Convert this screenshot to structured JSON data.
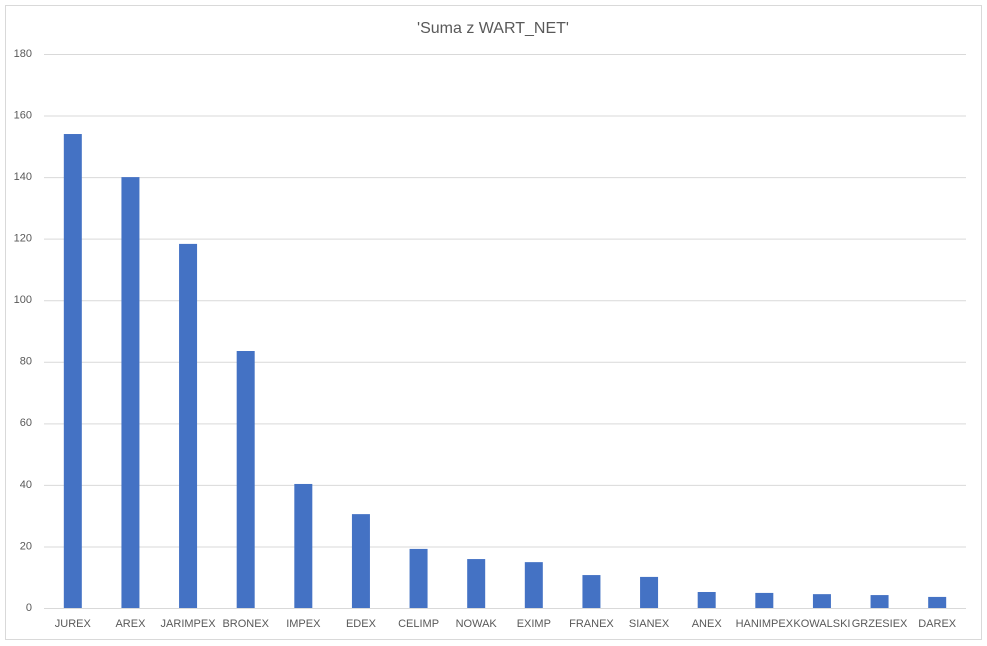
{
  "chart_data": {
    "type": "bar",
    "title": "'Suma z WART_NET'",
    "categories": [
      "JUREX",
      "AREX",
      "JARIMPEX",
      "BRONEX",
      "IMPEX",
      "EDEX",
      "CELIMP",
      "NOWAK",
      "EXIMP",
      "FRANEX",
      "SIANEX",
      "ANEX",
      "HANIMPEX",
      "KOWALSKI",
      "GRZESIEX",
      "DAREX"
    ],
    "values": [
      154,
      140,
      118.3,
      83.5,
      40.3,
      30.5,
      19.2,
      15.9,
      14.9,
      10.7,
      10.1,
      5.2,
      4.9,
      4.5,
      4.2,
      3.6
    ],
    "color": "#4472c4",
    "ylim": [
      0,
      180
    ],
    "yticks": [
      0,
      20,
      40,
      60,
      80,
      100,
      120,
      140,
      160,
      180
    ],
    "grid": true
  }
}
